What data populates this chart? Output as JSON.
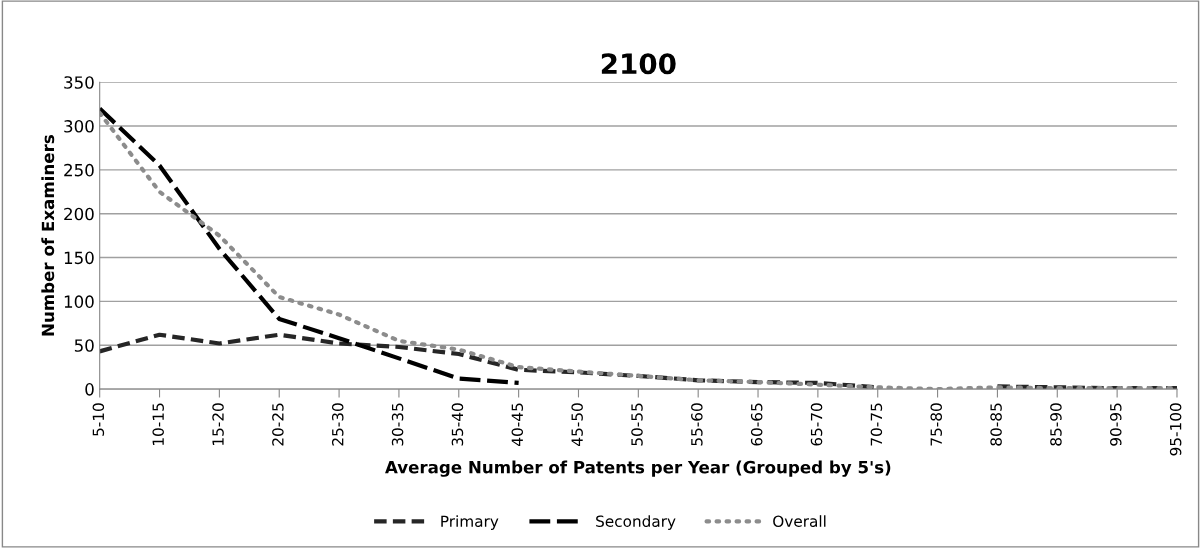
{
  "chart_data": {
    "type": "line",
    "title": "2100",
    "xlabel": "Average Number of Patents per Year (Grouped by 5's)",
    "ylabel": "Number of Examiners",
    "categories": [
      "5-10",
      "10-15",
      "15-20",
      "20-25",
      "25-30",
      "30-35",
      "35-40",
      "40-45",
      "45-50",
      "50-55",
      "55-60",
      "60-65",
      "65-70",
      "70-75",
      "75-80",
      "80-85",
      "85-90",
      "90-95",
      "95-100"
    ],
    "series": [
      {
        "name": "Primary",
        "color": "#262626",
        "line_style": "dashed",
        "values": [
          43,
          62,
          52,
          62,
          52,
          48,
          40,
          22,
          19,
          15,
          10,
          8,
          7,
          2,
          null,
          3,
          2,
          1,
          1
        ]
      },
      {
        "name": "Secondary",
        "color": "#000000",
        "line_style": "longdash",
        "values": [
          320,
          255,
          160,
          80,
          58,
          35,
          12,
          7,
          null,
          null,
          null,
          null,
          null,
          null,
          null,
          null,
          null,
          null,
          null
        ]
      },
      {
        "name": "Overall",
        "color": "#8c8c8c",
        "line_style": "dotted",
        "values": [
          315,
          225,
          175,
          105,
          85,
          55,
          45,
          25,
          20,
          15,
          10,
          8,
          5,
          2,
          0,
          2,
          1,
          1,
          1
        ]
      }
    ],
    "ylim": [
      0,
      350
    ],
    "yticks": [
      0,
      50,
      100,
      150,
      200,
      250,
      300,
      350
    ],
    "grid": "y",
    "legend": "bottom",
    "marker": "none"
  }
}
